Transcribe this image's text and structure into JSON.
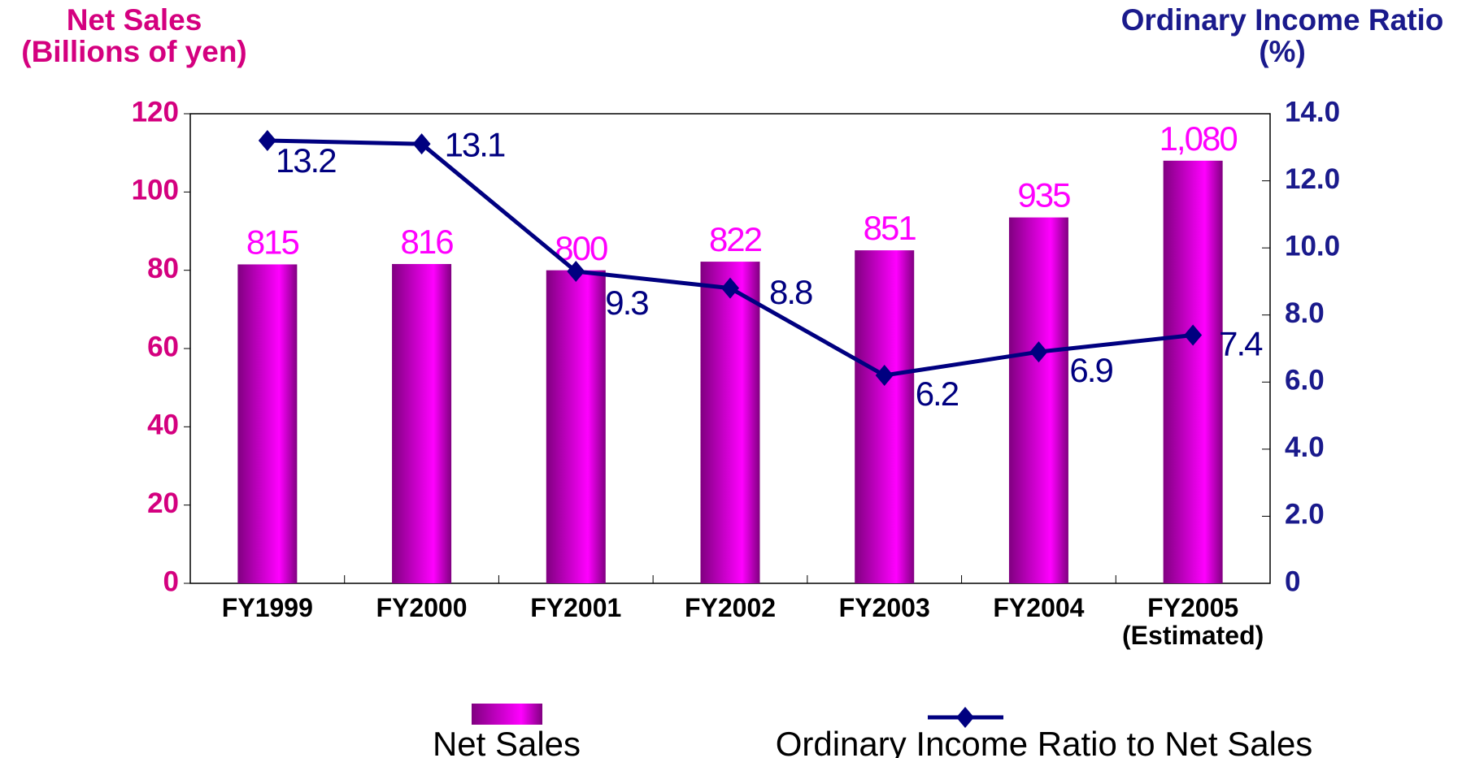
{
  "chart_data": {
    "type": "bar_line",
    "y_label": "Net Sales\n(Billions of yen)",
    "y2_label": "Ordinary Income Ratio\n(%)",
    "categories": [
      "FY1999",
      "FY2000",
      "FY2001",
      "FY2002",
      "FY2003",
      "FY2004",
      "FY2005\n(Estimated)"
    ],
    "series": [
      {
        "name": "Net Sales",
        "type": "bar",
        "color": "#ff00ff",
        "values": [
          81.5,
          81.6,
          80.0,
          82.2,
          85.1,
          93.5,
          108.0
        ],
        "value_labels": [
          "815",
          "816",
          "800",
          "822",
          "851",
          "935",
          "1,080"
        ]
      },
      {
        "name": "Ordinary Income Ratio to Net Sales",
        "type": "line",
        "color": "#000080",
        "axis": "y2",
        "values": [
          13.2,
          13.1,
          9.3,
          8.8,
          6.2,
          6.9,
          7.4
        ]
      }
    ],
    "ylim": [
      0,
      120
    ],
    "yticks": [
      0,
      20,
      40,
      60,
      80,
      100,
      120
    ],
    "y2lim": [
      0,
      14
    ],
    "y2ticks": [
      0,
      {
        "value": 2,
        "label": "2.0"
      },
      {
        "value": 4,
        "label": "4.0"
      },
      {
        "value": 6,
        "label": "6.0"
      },
      {
        "value": 8,
        "label": "8.0"
      },
      {
        "value": 10,
        "label": "10.0"
      },
      {
        "value": 12,
        "label": "12.0"
      },
      {
        "value": 14,
        "label": "14.0"
      }
    ]
  }
}
